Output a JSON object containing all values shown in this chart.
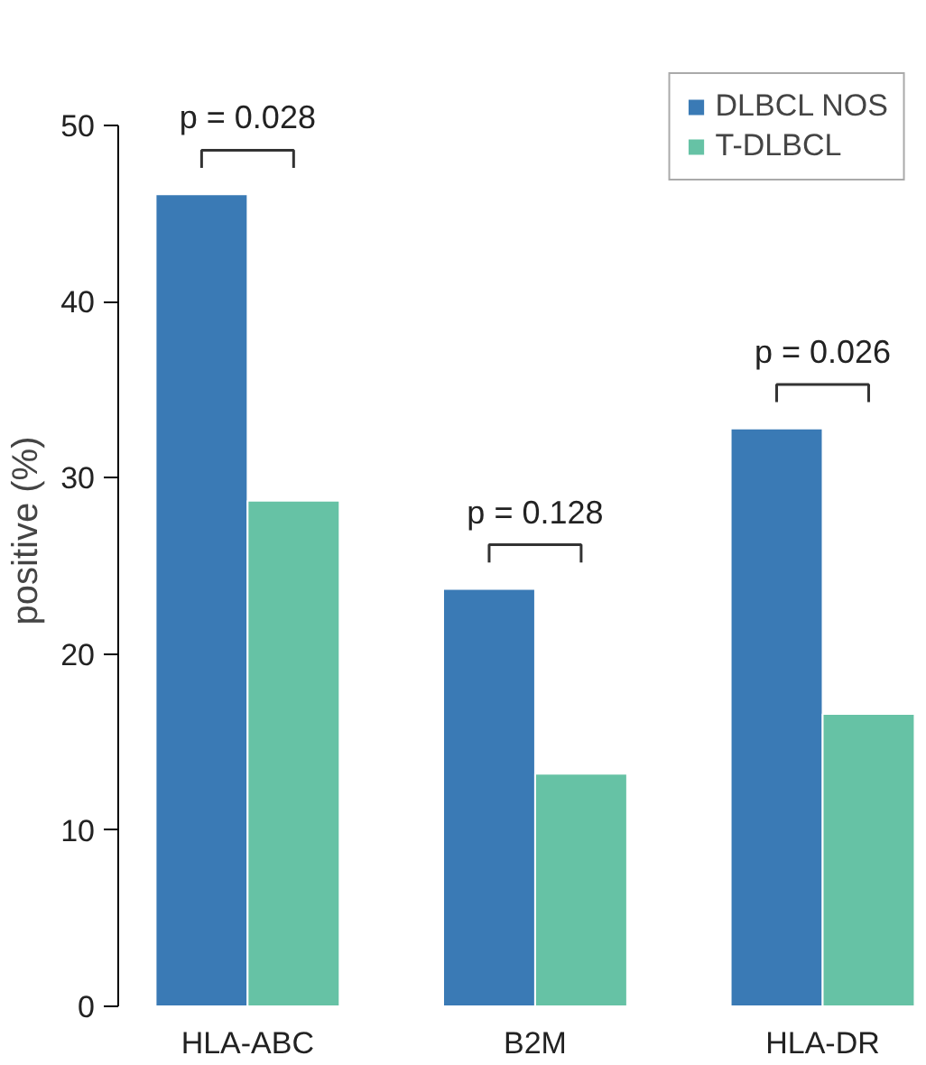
{
  "chart_data": {
    "type": "bar",
    "ylabel": "positive (%)",
    "categories": [
      "HLA-ABC",
      "B2M",
      "HLA-DR"
    ],
    "series": [
      {
        "name": "DLBCL NOS",
        "color": "#3a7ab5",
        "values": [
          46.1,
          23.7,
          32.8
        ]
      },
      {
        "name": "T-DLBCL",
        "color": "#66c2a5",
        "values": [
          28.7,
          13.2,
          16.6
        ]
      }
    ],
    "ylim": [
      0,
      50
    ],
    "yticks": [
      0,
      10,
      20,
      30,
      40,
      50
    ],
    "grid": false,
    "legend": "top right",
    "annotations": [
      "p = 0.028",
      "p = 0.128",
      "p = 0.026"
    ]
  }
}
